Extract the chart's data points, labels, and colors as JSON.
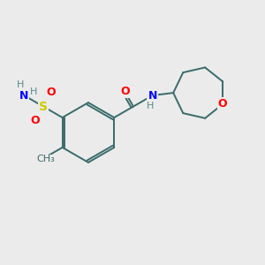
{
  "background_color": "#ebebeb",
  "bond_color": "#3a6b6b",
  "atom_colors": {
    "S": "#cccc00",
    "O": "#ff0000",
    "N": "#0000ff",
    "C": "#3a6b6b",
    "H": "#5a8a8a",
    "CH3": "#3a6b6b"
  },
  "figsize": [
    3.0,
    3.0
  ],
  "dpi": 100
}
